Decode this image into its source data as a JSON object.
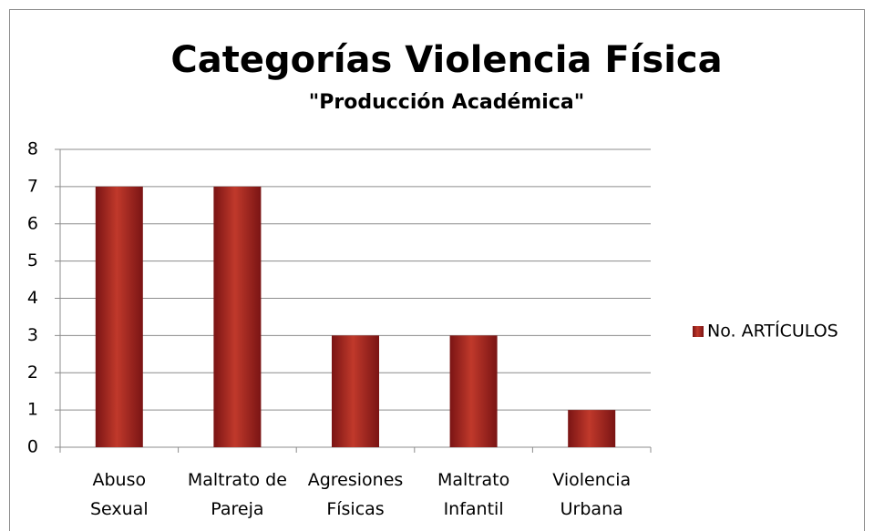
{
  "chart_data": {
    "type": "bar",
    "title": "Categorías Violencia Física",
    "subtitle": "\"Producción Académica\"",
    "categories": [
      "Abuso Sexual",
      "Maltrato de Pareja",
      "Agresiones Físicas",
      "Maltrato Infantil",
      "Violencia Urbana"
    ],
    "series": [
      {
        "name": "No. ARTÍCULOS",
        "color": "#c0392b",
        "values": [
          7,
          7,
          3,
          3,
          1
        ]
      }
    ],
    "ylim": [
      0,
      8
    ],
    "yticks": [
      0,
      1,
      2,
      3,
      4,
      5,
      6,
      7,
      8
    ],
    "grid": true,
    "legend": "right"
  }
}
